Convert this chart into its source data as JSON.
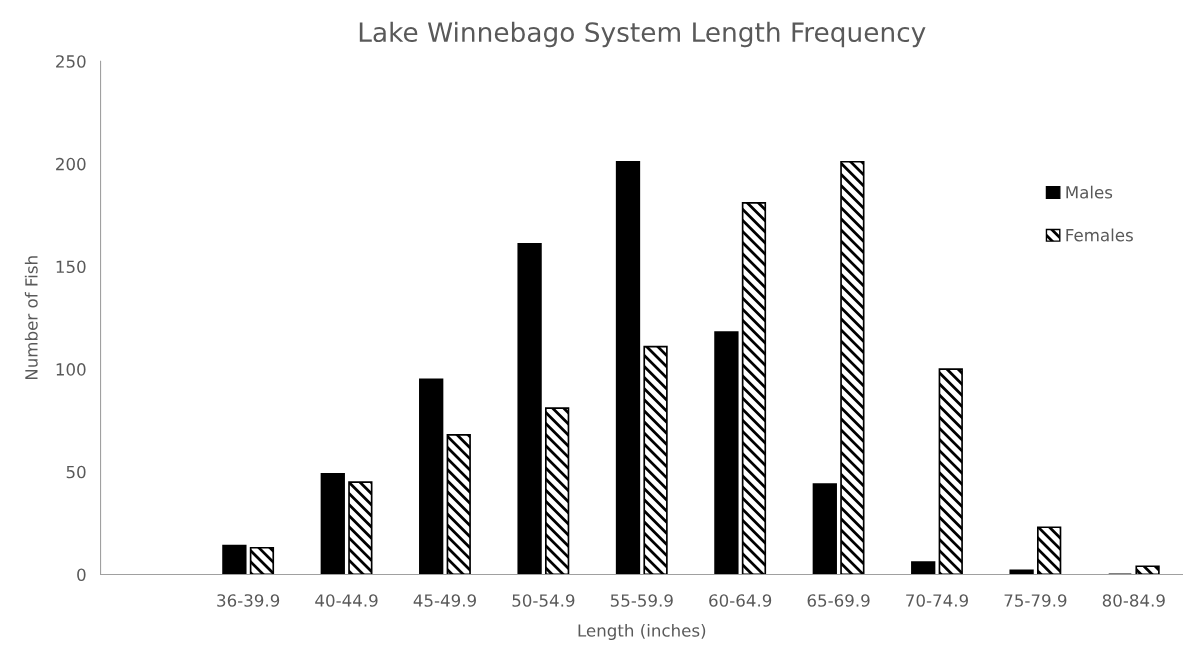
{
  "chart_data": {
    "type": "bar",
    "title": "Lake Winnebago System Length Frequency",
    "xlabel": "Length (inches)",
    "ylabel": "Number of Fish",
    "categories": [
      null,
      "36-39.9",
      "40-44.9",
      "45-49.9",
      "50-54.9",
      "55-59.9",
      "60-64.9",
      "65-69.9",
      "70-74.9",
      "75-79.9",
      "80-84.9"
    ],
    "series": [
      {
        "name": "Males",
        "color": "#000000",
        "values": [
          null,
          14,
          49,
          95,
          161,
          201,
          118,
          44,
          6,
          2,
          0
        ]
      },
      {
        "name": "Females",
        "color": "#000000",
        "values": [
          null,
          13,
          45,
          68,
          81,
          111,
          181,
          201,
          100,
          23,
          4
        ]
      }
    ],
    "ylim": [
      0,
      250
    ],
    "yticks": [
      0,
      50,
      100,
      150,
      200,
      250
    ],
    "grid": false,
    "legend": "right"
  }
}
